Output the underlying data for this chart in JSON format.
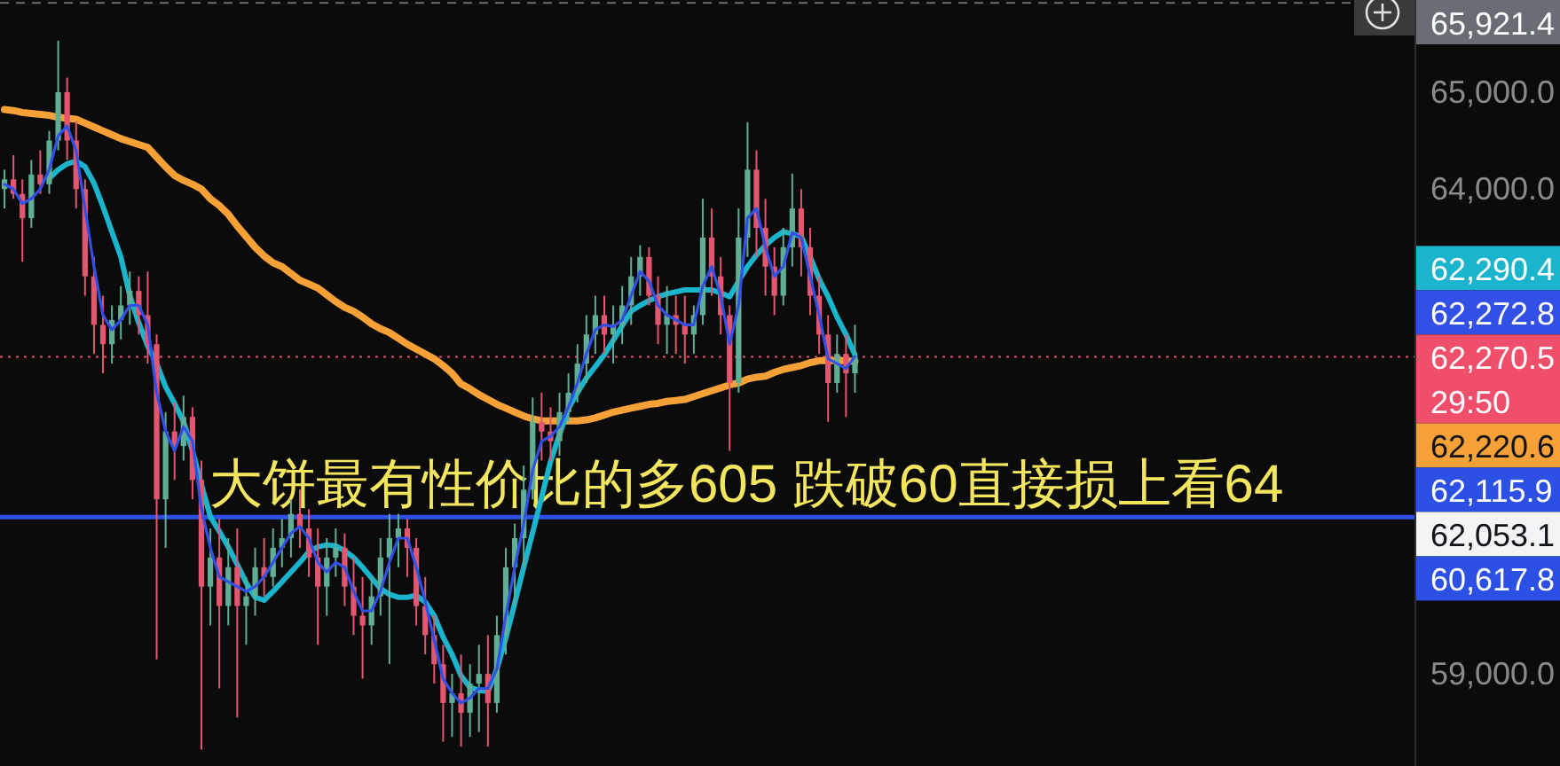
{
  "chart_data": {
    "type": "candlestick",
    "categories": [
      null,
      null,
      null,
      null,
      null,
      null,
      null,
      null,
      null,
      null,
      null,
      null,
      null,
      null,
      null,
      null,
      null,
      null,
      null,
      null,
      null,
      null,
      null,
      null,
      null,
      null,
      null,
      null,
      null,
      null,
      null,
      null,
      null,
      null,
      null,
      null,
      null,
      null,
      null,
      null,
      null,
      null,
      null,
      null,
      null,
      null,
      null,
      null,
      null,
      null,
      null,
      null,
      null,
      null,
      null,
      null,
      null,
      null,
      null,
      null,
      null,
      null,
      null,
      null,
      null,
      null,
      null,
      null,
      null,
      null,
      null,
      null,
      null,
      null,
      null,
      null,
      null,
      null,
      null,
      null,
      null,
      null,
      null,
      null,
      null,
      null,
      null,
      null,
      null,
      null,
      null,
      null,
      null,
      null,
      null,
      null,
      null,
      null,
      null,
      null,
      null,
      null,
      null,
      null,
      null,
      null,
      null,
      null,
      null,
      null,
      null,
      null,
      null,
      null,
      null,
      null,
      null,
      null,
      null,
      null,
      null,
      null,
      null,
      null,
      null,
      null,
      null,
      null,
      null,
      null,
      null,
      null,
      null,
      null,
      null,
      null,
      null,
      null,
      null,
      null,
      null,
      null,
      null,
      null,
      null,
      null,
      null,
      null,
      null,
      null,
      null,
      null,
      null,
      null,
      null,
      null,
      null,
      null
    ],
    "ohlc": [
      [
        64000,
        64200,
        63800,
        64100
      ],
      [
        64100,
        64350,
        63900,
        63950
      ],
      [
        63950,
        64100,
        63250,
        63700
      ],
      [
        63700,
        64300,
        63600,
        64150
      ],
      [
        64150,
        64400,
        63950,
        64050
      ],
      [
        64050,
        64600,
        63950,
        64500
      ],
      [
        64500,
        65530,
        64400,
        65000
      ],
      [
        65000,
        65150,
        64300,
        64500
      ],
      [
        64500,
        64700,
        63800,
        64000
      ],
      [
        64000,
        64100,
        62900,
        63100
      ],
      [
        63100,
        63300,
        62300,
        62600
      ],
      [
        62600,
        62900,
        62100,
        62400
      ],
      [
        62400,
        62800,
        62200,
        62650
      ],
      [
        62650,
        63000,
        62450,
        62800
      ],
      [
        62800,
        63150,
        62600,
        62950
      ],
      [
        62950,
        63100,
        62500,
        62700
      ],
      [
        62700,
        63150,
        62200,
        62400
      ],
      [
        62400,
        62500,
        59150,
        60800
      ],
      [
        60800,
        61700,
        60300,
        61500
      ],
      [
        61500,
        61800,
        61000,
        61350
      ],
      [
        61350,
        61870,
        61200,
        61650
      ],
      [
        61650,
        61750,
        60800,
        61000
      ],
      [
        61000,
        61200,
        58220,
        59900
      ],
      [
        59900,
        60500,
        59500,
        60200
      ],
      [
        60200,
        60600,
        58850,
        59700
      ],
      [
        59700,
        60400,
        59500,
        60100
      ],
      [
        60100,
        60500,
        58550,
        59700
      ],
      [
        59700,
        60000,
        59300,
        59800
      ],
      [
        59800,
        60300,
        59600,
        60100
      ],
      [
        60100,
        60400,
        59800,
        60000
      ],
      [
        60000,
        60500,
        59900,
        60300
      ],
      [
        60300,
        60600,
        60100,
        60400
      ],
      [
        60400,
        60800,
        60200,
        60650
      ],
      [
        60650,
        60900,
        60300,
        60500
      ],
      [
        60500,
        60700,
        60000,
        60200
      ],
      [
        60200,
        60500,
        59300,
        59900
      ],
      [
        59900,
        60400,
        59600,
        60200
      ],
      [
        60200,
        60500,
        60000,
        60300
      ],
      [
        60300,
        60450,
        59700,
        59900
      ],
      [
        59900,
        60200,
        59400,
        59600
      ],
      [
        59600,
        60000,
        58950,
        59500
      ],
      [
        59500,
        60000,
        59300,
        59800
      ],
      [
        59800,
        60400,
        59600,
        60200
      ],
      [
        60200,
        60650,
        59100,
        60400
      ],
      [
        60400,
        60650,
        60100,
        60500
      ],
      [
        60500,
        60600,
        60000,
        60300
      ],
      [
        60300,
        60400,
        59500,
        59700
      ],
      [
        59700,
        60000,
        59200,
        59400
      ],
      [
        59400,
        59600,
        58900,
        59100
      ],
      [
        59100,
        59300,
        58300,
        58700
      ],
      [
        58700,
        59000,
        58350,
        58800
      ],
      [
        58800,
        59200,
        58250,
        58600
      ],
      [
        58600,
        59100,
        58350,
        58900
      ],
      [
        58900,
        59300,
        58400,
        59000
      ],
      [
        59000,
        59400,
        58250,
        58700
      ],
      [
        58700,
        59600,
        58600,
        59400
      ],
      [
        59400,
        60300,
        59200,
        60100
      ],
      [
        60100,
        60550,
        59700,
        60400
      ],
      [
        60400,
        61150,
        60100,
        60900
      ],
      [
        60900,
        61850,
        60800,
        61600
      ],
      [
        61600,
        61900,
        61200,
        61500
      ],
      [
        61500,
        61750,
        61200,
        61400
      ],
      [
        61400,
        61900,
        61250,
        61700
      ],
      [
        61700,
        62100,
        61600,
        61900
      ],
      [
        61900,
        62400,
        61800,
        62200
      ],
      [
        62200,
        62700,
        62000,
        62500
      ],
      [
        62500,
        62900,
        62300,
        62700
      ],
      [
        62700,
        62900,
        62300,
        62500
      ],
      [
        62500,
        62800,
        62200,
        62600
      ],
      [
        62600,
        63000,
        62400,
        62800
      ],
      [
        62800,
        63300,
        62600,
        63100
      ],
      [
        63100,
        63420,
        62900,
        63300
      ],
      [
        63300,
        63400,
        62800,
        62900
      ],
      [
        62900,
        63100,
        62400,
        62600
      ],
      [
        62600,
        63000,
        62300,
        62700
      ],
      [
        62700,
        62900,
        62300,
        62600
      ],
      [
        62600,
        62900,
        62200,
        62500
      ],
      [
        62500,
        62800,
        62300,
        62700
      ],
      [
        62700,
        63900,
        62600,
        63500
      ],
      [
        63500,
        63800,
        62900,
        63100
      ],
      [
        63100,
        63300,
        62500,
        62700
      ],
      [
        62700,
        62800,
        61300,
        62000
      ],
      [
        62000,
        63800,
        61900,
        63500
      ],
      [
        63500,
        64690,
        63300,
        64200
      ],
      [
        64200,
        64400,
        63300,
        63600
      ],
      [
        63600,
        63900,
        62900,
        63200
      ],
      [
        63200,
        63400,
        62700,
        62900
      ],
      [
        62900,
        63600,
        62800,
        63400
      ],
      [
        63400,
        64160,
        63200,
        63800
      ],
      [
        63800,
        64000,
        63100,
        63400
      ],
      [
        63400,
        63600,
        62700,
        62900
      ],
      [
        62900,
        63100,
        62300,
        62500
      ],
      [
        62500,
        62700,
        61600,
        62000
      ],
      [
        62000,
        62500,
        61900,
        62300
      ],
      [
        62300,
        62500,
        61650,
        62100
      ],
      [
        62100,
        62600,
        61900,
        62270.5
      ],
      null,
      null,
      null,
      null,
      null,
      null,
      null,
      null,
      null,
      null,
      null,
      null,
      null,
      null,
      null,
      null,
      null,
      null,
      null,
      null,
      null,
      null,
      null,
      null,
      null,
      null,
      null,
      null,
      null,
      null,
      null,
      null,
      null,
      null,
      null,
      null,
      null,
      null,
      null,
      null,
      null,
      null,
      null,
      null,
      null,
      null,
      null,
      null,
      null,
      null,
      null,
      null,
      null,
      null,
      null,
      null,
      null,
      null,
      null,
      null,
      null,
      null
    ],
    "colors": [
      "#5fae95",
      "#e2566f",
      "#e2566f",
      "#5fae95",
      "#e2566f",
      "#5fae95",
      "#5fae95",
      "#e2566f",
      "#e2566f",
      "#e2566f",
      "#e2566f",
      "#e2566f",
      "#5fae95",
      "#5fae95",
      "#5fae95",
      "#e2566f",
      "#e2566f",
      "#e2566f",
      "#5fae95",
      "#e2566f",
      "#5fae95",
      "#e2566f",
      "#e2566f",
      "#5fae95",
      "#e2566f",
      "#5fae95",
      "#e2566f",
      "#5fae95",
      "#5fae95",
      "#e2566f",
      "#5fae95",
      "#5fae95",
      "#5fae95",
      "#e2566f",
      "#e2566f",
      "#e2566f",
      "#5fae95",
      "#5fae95",
      "#e2566f",
      "#e2566f",
      "#e2566f",
      "#5fae95",
      "#5fae95",
      "#5fae95",
      "#5fae95",
      "#e2566f",
      "#e2566f",
      "#e2566f",
      "#e2566f",
      "#e2566f",
      "#5fae95",
      "#e2566f",
      "#5fae95",
      "#5fae95",
      "#e2566f",
      "#5fae95",
      "#5fae95",
      "#5fae95",
      "#5fae95",
      "#5fae95",
      "#e2566f",
      "#e2566f",
      "#5fae95",
      "#5fae95",
      "#5fae95",
      "#5fae95",
      "#5fae95",
      "#e2566f",
      "#5fae95",
      "#5fae95",
      "#5fae95",
      "#5fae95",
      "#e2566f",
      "#e2566f",
      "#5fae95",
      "#e2566f",
      "#e2566f",
      "#5fae95",
      "#5fae95",
      "#e2566f",
      "#e2566f",
      "#e2566f",
      "#5fae95",
      "#5fae95",
      "#e2566f",
      "#e2566f",
      "#e2566f",
      "#5fae95",
      "#5fae95",
      "#e2566f",
      "#e2566f",
      "#e2566f",
      "#e2566f",
      "#5fae95",
      "#e2566f",
      "#5fae95",
      null,
      null,
      null,
      null,
      null,
      null,
      null,
      null,
      null,
      null,
      null,
      null,
      null,
      null,
      null,
      null,
      null,
      null,
      null,
      null,
      null,
      null,
      null,
      null,
      null,
      null,
      null,
      null,
      null,
      null,
      null,
      null,
      null,
      null,
      null,
      null,
      null,
      null,
      null,
      null,
      null,
      null,
      null,
      null,
      null,
      null,
      null,
      null,
      null,
      null,
      null,
      null,
      null,
      null,
      null,
      null,
      null,
      null,
      null,
      null,
      null,
      null
    ],
    "series": [
      {
        "type": "line",
        "color": "#f6a038",
        "values": [
          64820,
          64810,
          64790,
          64780,
          64770,
          64760,
          64740,
          64730,
          64720,
          64680,
          64640,
          64600,
          64560,
          64520,
          64490,
          64460,
          64430,
          64330,
          64230,
          64140,
          64090,
          64050,
          64000,
          63900,
          63830,
          63740,
          63620,
          63510,
          63400,
          63310,
          63240,
          63200,
          63130,
          63060,
          63020,
          62980,
          62910,
          62840,
          62780,
          62740,
          62680,
          62610,
          62560,
          62520,
          62460,
          62400,
          62350,
          62300,
          62250,
          62180,
          62100,
          61990,
          61940,
          61880,
          61830,
          61780,
          61740,
          61700,
          61660,
          61630,
          61610,
          61610,
          61610,
          61610,
          61610,
          61620,
          61640,
          61670,
          61700,
          61720,
          61740,
          61760,
          61780,
          61790,
          61810,
          61820,
          61830,
          61860,
          61890,
          61920,
          61950,
          61980,
          62000,
          62040,
          62060,
          62070,
          62110,
          62140,
          62160,
          62180,
          62210,
          62230,
          62230,
          62230,
          62230,
          62220.6,
          null,
          null,
          null,
          null,
          null,
          null,
          null,
          null,
          null,
          null,
          null,
          null,
          null,
          null,
          null,
          null,
          null,
          null,
          null,
          null,
          null,
          null,
          null,
          null,
          null,
          null,
          null,
          null,
          null,
          null,
          null,
          null,
          null,
          null,
          null,
          null,
          null,
          null,
          null,
          null,
          null,
          null,
          null,
          null,
          null,
          null,
          null,
          null,
          null,
          null,
          null,
          null,
          null,
          null,
          null,
          null,
          null,
          null,
          null,
          null,
          null,
          null
        ]
      },
      {
        "type": "line",
        "color": "#1ab4cc",
        "values": [
          null,
          null,
          null,
          null,
          null,
          64110,
          64200,
          64260,
          64290,
          64230,
          64060,
          63820,
          63560,
          63300,
          62900,
          62620,
          62380,
          62200,
          61960,
          61790,
          61600,
          61300,
          60950,
          60620,
          60470,
          60310,
          60130,
          59940,
          59790,
          59760,
          59850,
          59950,
          60050,
          60150,
          60260,
          60310,
          60330,
          60320,
          60270,
          60200,
          60100,
          59990,
          59880,
          59820,
          59790,
          59790,
          59810,
          59740,
          59600,
          59380,
          59200,
          58980,
          58860,
          58830,
          58820,
          59050,
          59370,
          59730,
          60100,
          60460,
          60820,
          61190,
          61470,
          61740,
          61900,
          62050,
          62170,
          62290,
          62440,
          62590,
          62740,
          62800,
          62850,
          62890,
          62920,
          62940,
          62960,
          62960,
          62960,
          62960,
          62930,
          62890,
          63050,
          63200,
          63320,
          63420,
          63500,
          63560,
          63540,
          63510,
          63300,
          63070,
          62890,
          62680,
          62500,
          62290.4,
          null,
          null,
          null,
          null,
          null,
          null,
          null,
          null,
          null,
          null,
          null,
          null,
          null,
          null,
          null,
          null,
          null,
          null,
          null,
          null,
          null,
          null,
          null,
          null,
          null,
          null,
          null,
          null,
          null,
          null,
          null,
          null,
          null,
          null,
          null,
          null,
          null,
          null,
          null,
          null,
          null,
          null,
          null,
          null,
          null,
          null,
          null,
          null,
          null,
          null,
          null,
          null,
          null,
          null,
          null,
          null,
          null,
          null,
          null,
          null,
          null,
          null
        ]
      },
      {
        "type": "line",
        "color": "#3350e6",
        "values": [
          64050,
          64000,
          63850,
          63900,
          64000,
          64200,
          64550,
          64650,
          64400,
          63800,
          63200,
          62700,
          62550,
          62650,
          62800,
          62800,
          62600,
          61900,
          61500,
          61300,
          61550,
          61400,
          60700,
          60300,
          60000,
          59950,
          59900,
          59850,
          59900,
          60000,
          60150,
          60300,
          60450,
          60520,
          60400,
          60150,
          60050,
          60150,
          60100,
          59850,
          59650,
          59650,
          59850,
          60150,
          60400,
          60400,
          60100,
          59750,
          59350,
          58950,
          58800,
          58700,
          58750,
          58850,
          58850,
          59050,
          59600,
          60100,
          60550,
          61100,
          61400,
          61450,
          61550,
          61750,
          62000,
          62300,
          62550,
          62600,
          62580,
          62650,
          62900,
          63150,
          63050,
          62800,
          62700,
          62650,
          62600,
          62600,
          63000,
          63200,
          62900,
          62400,
          62800,
          63700,
          63800,
          63400,
          63100,
          63200,
          63550,
          63500,
          63100,
          62700,
          62250,
          62200,
          62150,
          62272.8,
          null,
          null,
          null,
          null,
          null,
          null,
          null,
          null,
          null,
          null,
          null,
          null,
          null,
          null,
          null,
          null,
          null,
          null,
          null,
          null,
          null,
          null,
          null,
          null,
          null,
          null,
          null,
          null,
          null,
          null,
          null,
          null,
          null,
          null,
          null,
          null,
          null,
          null,
          null,
          null,
          null,
          null,
          null,
          null,
          null,
          null,
          null,
          null,
          null,
          null,
          null,
          null,
          null,
          null,
          null,
          null,
          null,
          null,
          null,
          null,
          null,
          null
        ]
      }
    ],
    "ylim": [
      58050,
      65950
    ],
    "yticks": [
      {
        "value": 59000,
        "label": "59,000.0"
      },
      {
        "value": 64000,
        "label": "64,000.0"
      },
      {
        "value": 65000,
        "label": "65,000.0"
      }
    ],
    "tick_labels": "y",
    "ref_lines": [
      {
        "axis": "y",
        "value": 60617.8,
        "label": "60,617.8",
        "color": "#2b50e3",
        "line_style": "solid"
      },
      {
        "axis": "y",
        "value": 62270.5,
        "label": "62,270.5",
        "color": "#ef4f6b",
        "line_style": "dotted"
      },
      {
        "axis": "y",
        "value": 65921.4,
        "label": "65,921.4",
        "color": "#6a6d73",
        "line_style": "dashed"
      }
    ],
    "annotations": [
      "大饼最有性价比的多605 跌破60直接损上看64",
      "62,290.4",
      "62,272.8",
      "29:50",
      "62,220.6",
      "62,115.9",
      "62,053.1"
    ]
  }
}
